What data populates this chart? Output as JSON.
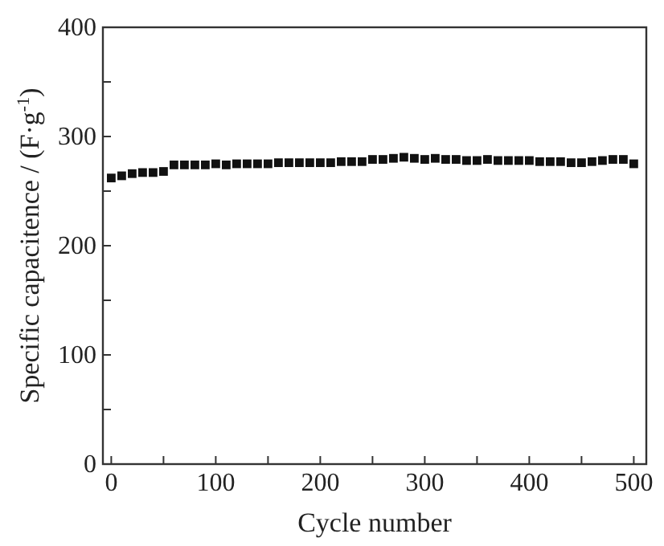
{
  "chart_data": {
    "type": "scatter",
    "xlabel": "Cycle number",
    "ylabel": "Specific capacitence / (F·g$^{-1}$)",
    "x": [
      0,
      10,
      20,
      30,
      40,
      50,
      60,
      70,
      80,
      90,
      100,
      110,
      120,
      130,
      140,
      150,
      160,
      170,
      180,
      190,
      200,
      210,
      220,
      230,
      240,
      250,
      260,
      270,
      280,
      290,
      300,
      310,
      320,
      330,
      340,
      350,
      360,
      370,
      380,
      390,
      400,
      410,
      420,
      430,
      440,
      450,
      460,
      470,
      480,
      490,
      500
    ],
    "series": [
      {
        "color": "#111111",
        "values": [
          262,
          264,
          266,
          267,
          267,
          268,
          274,
          274,
          274,
          274,
          275,
          274,
          275,
          275,
          275,
          275,
          276,
          276,
          276,
          276,
          276,
          276,
          277,
          277,
          277,
          279,
          279,
          280,
          281,
          280,
          279,
          280,
          279,
          279,
          278,
          278,
          279,
          278,
          278,
          278,
          278,
          277,
          277,
          277,
          276,
          276,
          277,
          278,
          279,
          279,
          275
        ]
      }
    ],
    "xlim": [
      -8,
      512
    ],
    "ylim": [
      0,
      400
    ],
    "xticks": [
      0,
      {
        "value": 50,
        "label": null
      },
      100,
      {
        "value": 150,
        "label": null
      },
      200,
      {
        "value": 250,
        "label": null
      },
      300,
      {
        "value": 350,
        "label": null
      },
      400,
      {
        "value": 450,
        "label": null
      },
      500
    ],
    "yticks": [
      0,
      {
        "value": 50,
        "label": null
      },
      100,
      {
        "value": 150,
        "label": null
      },
      200,
      {
        "value": 250,
        "label": null
      },
      300,
      {
        "value": 350,
        "label": null
      },
      400
    ],
    "marker": "square",
    "grid": false
  }
}
